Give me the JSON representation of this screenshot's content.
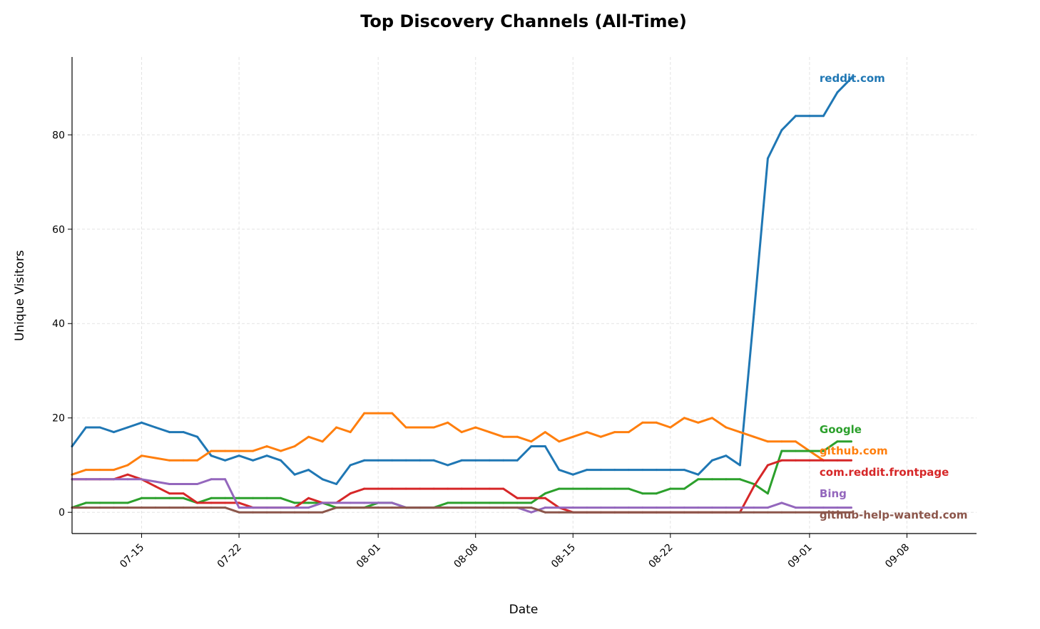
{
  "chart_data": {
    "type": "line",
    "title": "Top Discovery Channels (All-Time)",
    "xlabel": "Date",
    "ylabel": "Unique Visitors",
    "x_start": "2025-07-10",
    "x_range": [
      "2025-07-10",
      "2025-09-13"
    ],
    "ylim": [
      -4.5,
      96.5
    ],
    "y_ticks": [
      0,
      20,
      40,
      60,
      80
    ],
    "x_ticks": [
      "07-15",
      "07-22",
      "08-01",
      "08-08",
      "08-15",
      "08-22",
      "09-01",
      "09-08"
    ],
    "x_tick_dates": [
      "2025-07-15",
      "2025-07-22",
      "2025-08-01",
      "2025-08-08",
      "2025-08-15",
      "2025-08-22",
      "2025-09-01",
      "2025-09-08"
    ],
    "grid": true,
    "legend": "end-of-line labels",
    "series": [
      {
        "name": "reddit.com",
        "color": "#1f77b4",
        "values": [
          14,
          18,
          18,
          17,
          18,
          19,
          18,
          17,
          17,
          16,
          12,
          11,
          12,
          11,
          12,
          11,
          8,
          9,
          7,
          6,
          10,
          11,
          11,
          11,
          11,
          11,
          11,
          10,
          11,
          11,
          11,
          11,
          11,
          14,
          14,
          9,
          8,
          9,
          9,
          9,
          9,
          9,
          9,
          9,
          9,
          8,
          11,
          12,
          10,
          42,
          75,
          81,
          84,
          84,
          84,
          89,
          92
        ]
      },
      {
        "name": "github.com",
        "color": "#ff7f0e",
        "values": [
          8,
          9,
          9,
          9,
          10,
          12,
          11.5,
          11,
          11,
          11,
          13,
          13,
          13,
          13,
          14,
          13,
          14,
          16,
          15,
          18,
          17,
          21,
          21,
          21,
          18,
          18,
          18,
          19,
          17,
          18,
          17,
          16,
          16,
          15,
          17,
          15,
          16,
          17,
          16,
          17,
          17,
          19,
          19,
          18,
          20,
          19,
          20,
          18,
          17,
          16,
          15,
          15,
          15,
          13,
          11,
          null,
          null
        ]
      },
      {
        "name": "Google",
        "color": "#2ca02c",
        "values": [
          1,
          2,
          2,
          2,
          2,
          3,
          3,
          3,
          3,
          2,
          3,
          3,
          3,
          3,
          3,
          3,
          2,
          2,
          2,
          1,
          1,
          1,
          2,
          2,
          1,
          1,
          1,
          2,
          2,
          2,
          2,
          2,
          2,
          2,
          4,
          5,
          5,
          5,
          5,
          5,
          5,
          4,
          4,
          5,
          5,
          7,
          7,
          7,
          7,
          6,
          4,
          13,
          13,
          13,
          13,
          15,
          15
        ]
      },
      {
        "name": "com.reddit.frontpage",
        "color": "#d62728",
        "values": [
          7,
          7,
          7,
          7,
          8,
          7,
          5.5,
          4,
          4,
          2,
          2,
          2,
          2,
          1,
          1,
          1,
          1,
          3,
          2,
          2,
          4,
          5,
          5,
          5,
          5,
          5,
          5,
          5,
          5,
          5,
          5,
          5,
          3,
          3,
          3,
          1,
          0,
          0,
          0,
          0,
          0,
          0,
          0,
          0,
          0,
          0,
          0,
          0,
          0,
          5.5,
          10,
          11,
          11,
          11,
          11,
          11,
          11
        ]
      },
      {
        "name": "Bing",
        "color": "#9467bd",
        "values": [
          7,
          7,
          7,
          7,
          7,
          7,
          6.5,
          6,
          6,
          6,
          7,
          7,
          1,
          1,
          1,
          1,
          1,
          1,
          2,
          2,
          2,
          2,
          2,
          2,
          1,
          1,
          1,
          1,
          1,
          1,
          1,
          1,
          1,
          0,
          1,
          1,
          1,
          1,
          1,
          1,
          1,
          1,
          1,
          1,
          1,
          1,
          1,
          1,
          1,
          1,
          1,
          2,
          1,
          1,
          1,
          1,
          1
        ]
      },
      {
        "name": "github-help-wanted.com",
        "color": "#8c564b",
        "values": [
          1,
          1,
          1,
          1,
          1,
          1,
          1,
          1,
          1,
          1,
          1,
          1,
          0,
          0,
          0,
          0,
          0,
          0,
          0,
          1,
          1,
          1,
          1,
          1,
          1,
          1,
          1,
          1,
          1,
          1,
          1,
          1,
          1,
          1,
          0,
          0,
          0,
          0,
          0,
          0,
          0,
          0,
          0,
          0,
          0,
          0,
          0,
          0,
          0,
          0,
          0,
          0,
          0,
          0,
          0,
          0,
          0
        ]
      }
    ]
  }
}
